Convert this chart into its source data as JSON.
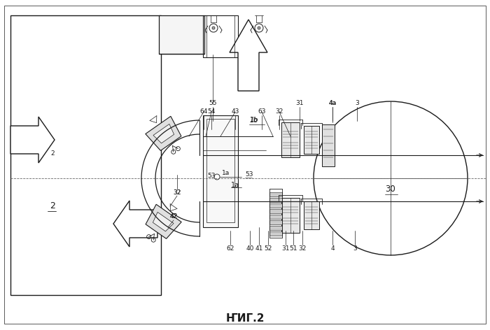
{
  "title": "ҤИГ.2",
  "bg_color": "#ffffff",
  "line_color": "#1a1a1a",
  "fig_width": 7.0,
  "fig_height": 4.72,
  "dpi": 100,
  "labels_top": [
    [
      304,
      148,
      "55"
    ],
    [
      291,
      160,
      "64"
    ],
    [
      302,
      160,
      "54"
    ],
    [
      336,
      160,
      "43"
    ],
    [
      374,
      160,
      "63"
    ],
    [
      399,
      160,
      "32"
    ],
    [
      428,
      148,
      "31"
    ],
    [
      475,
      148,
      "4a"
    ],
    [
      510,
      148,
      "3"
    ],
    [
      363,
      172,
      "1b"
    ]
  ],
  "labels_mid": [
    [
      302,
      252,
      "53"
    ],
    [
      323,
      248,
      "1a"
    ]
  ],
  "labels_bot": [
    [
      329,
      355,
      "62"
    ],
    [
      357,
      355,
      "40"
    ],
    [
      383,
      355,
      "52"
    ],
    [
      408,
      355,
      "31"
    ],
    [
      419,
      355,
      "51"
    ],
    [
      432,
      355,
      "32"
    ],
    [
      475,
      355,
      "4"
    ],
    [
      507,
      355,
      "3"
    ],
    [
      253,
      275,
      "32"
    ],
    [
      248,
      310,
      "42"
    ],
    [
      75,
      220,
      "2"
    ]
  ]
}
